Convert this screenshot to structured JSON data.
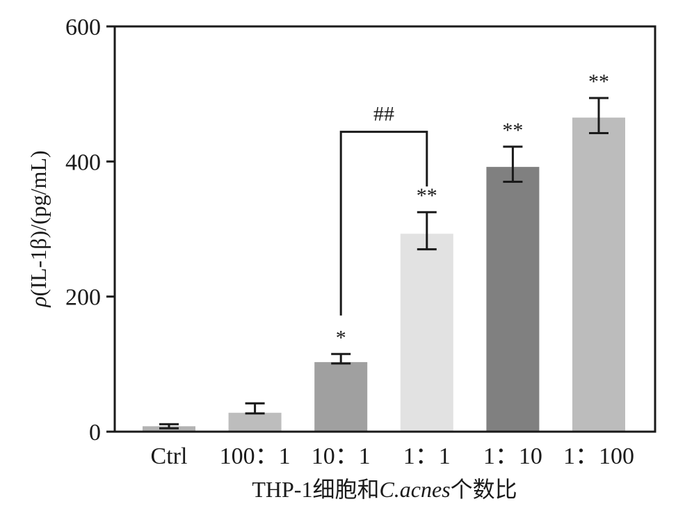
{
  "chart_data": {
    "type": "bar",
    "categories": [
      "Ctrl",
      "100：1",
      "10：1",
      "1：1",
      "1：10",
      "1：100"
    ],
    "values": [
      8,
      28,
      103,
      293,
      392,
      465
    ],
    "error_upper": [
      11,
      42,
      115,
      325,
      422,
      494
    ],
    "error_lower": [
      5,
      27,
      101,
      270,
      370,
      442
    ],
    "significance": [
      "",
      "",
      "*",
      "**",
      "**",
      "**"
    ],
    "bar_colors": [
      "#b3b3b3",
      "#bdbdbd",
      "#a0a0a0",
      "#e2e2e2",
      "#808080",
      "#bcbcbc"
    ],
    "ylabel": "ρ(IL-1β)/(pg/mL)",
    "xlabel_parts": [
      "THP-1细胞和",
      "C.acnes",
      "个数比"
    ],
    "ylim": [
      0,
      600
    ],
    "yticks": [
      0,
      200,
      400,
      600
    ],
    "bracket": {
      "from_index": 2,
      "to_index": 3,
      "label": "##",
      "y_top": 444,
      "y_left_end": 172,
      "y_right_end": 363
    },
    "grid": false
  }
}
